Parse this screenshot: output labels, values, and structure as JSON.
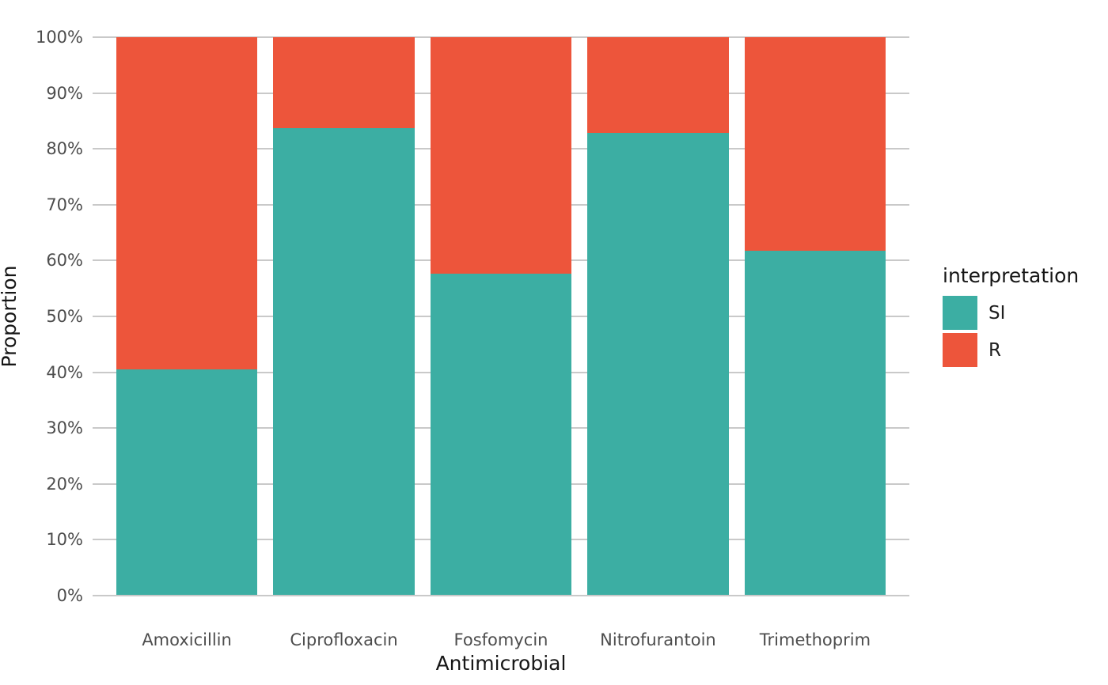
{
  "chart_data": {
    "type": "bar",
    "subtype": "stacked-percent",
    "orientation": "vertical",
    "categories": [
      "Amoxicillin",
      "Ciprofloxacin",
      "Fosfomycin",
      "Nitrofurantoin",
      "Trimethoprim"
    ],
    "series": [
      {
        "name": "SI",
        "color": "#3CAEA3",
        "values": [
          40.5,
          83.7,
          57.7,
          82.8,
          61.8
        ]
      },
      {
        "name": "R",
        "color": "#ED553B",
        "values": [
          59.5,
          16.3,
          42.3,
          17.2,
          38.2
        ]
      }
    ],
    "title": "",
    "xlabel": "Antimicrobial",
    "ylabel": "Proportion",
    "ylim": [
      0,
      100
    ],
    "y_tick_step": 10,
    "y_tick_labels": [
      "0%",
      "10%",
      "20%",
      "30%",
      "40%",
      "50%",
      "60%",
      "70%",
      "80%",
      "90%",
      "100%"
    ],
    "grid": true,
    "legend": {
      "title": "interpretation",
      "position": "right",
      "entries": [
        "SI",
        "R"
      ]
    }
  },
  "colors": {
    "background": "#ffffff",
    "gridline": "#c9c9c9",
    "tick_label": "#4d4d4d",
    "axis_title": "#161616",
    "legend_title": "#161616",
    "legend_label": "#1f1f1f"
  }
}
